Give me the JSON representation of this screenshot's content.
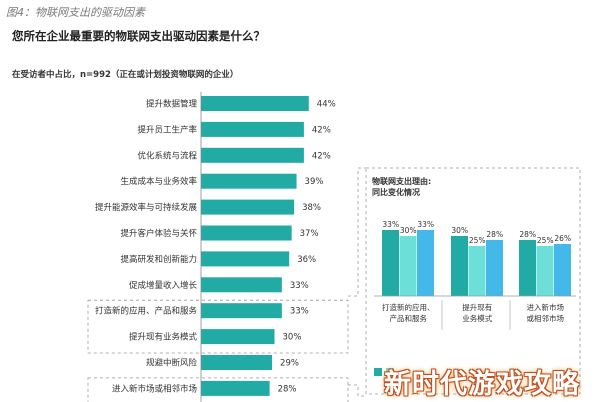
{
  "figure_label": "图4：物联网支出的驱动因素",
  "question": "您所在企业最重要的物联网支出驱动因素是什么？",
  "subtitle": "在受访者中占比，n=992（正在或计划投资物联网的企业）",
  "colors": {
    "main_bar": "#22aaa5",
    "inset_dark": "#22aaa5",
    "inset_mid": "#6ce0d8",
    "inset_light": "#44b8e8",
    "dash": "#999999"
  },
  "chart_data": [
    {
      "type": "bar",
      "orientation": "horizontal",
      "categories": [
        "提升数据管理",
        "提升员工生产率",
        "优化系统与流程",
        "生成成本与业务效率",
        "提升能源效率与可持续发展",
        "提升客户体验与关怀",
        "提高研发和创新能力",
        "促成增量收入增长",
        "打造新的应用、产品和服务",
        "提升现有业务模式",
        "规避中断风险",
        "进入新市场或相邻市场"
      ],
      "values": [
        44,
        42,
        42,
        39,
        38,
        37,
        36,
        33,
        33,
        30,
        29,
        28
      ],
      "value_labels": [
        "44%",
        "42%",
        "42%",
        "39%",
        "38%",
        "37%",
        "36%",
        "33%",
        "33%",
        "30%",
        "29%",
        "28%"
      ],
      "highlighted": [
        "打造新的应用、产品和服务",
        "提升现有业务模式",
        "进入新市场或相邻市场"
      ]
    },
    {
      "type": "bar",
      "title": "物联网支出理由:\n同比变化情况",
      "categories": [
        "打造新的应用、\n产品和服务",
        "提升现有\n业务模式",
        "进入新市场\n或相邻市场"
      ],
      "series": [
        {
          "values": [
            33,
            30,
            28
          ],
          "labels": [
            "33%",
            "30%",
            "28%"
          ]
        },
        {
          "values": [
            30,
            25,
            25
          ],
          "labels": [
            "30%",
            "25%",
            "25%"
          ]
        },
        {
          "values": [
            33,
            28,
            26
          ],
          "labels": [
            "33%",
            "28%",
            "26%"
          ]
        }
      ]
    }
  ],
  "watermark": "新时代游戏攻略"
}
